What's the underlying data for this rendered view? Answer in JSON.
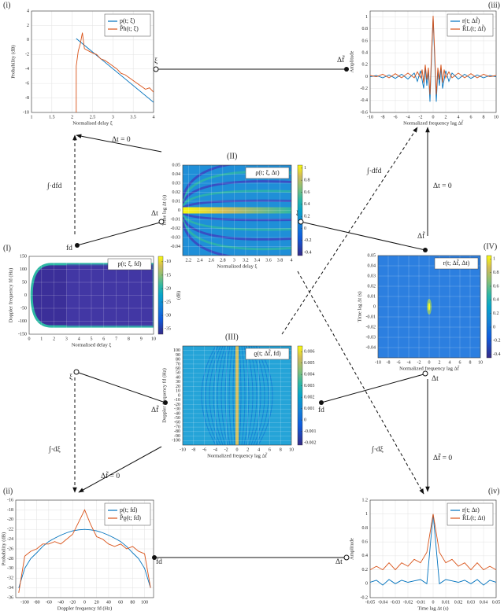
{
  "chart_data": [
    {
      "type": "line",
      "xlabel": "Normalised delay ξ",
      "ylabel": "Probability (dB)",
      "xlim": [
        1,
        4
      ],
      "xticks": [
        1,
        1.5,
        2,
        2.5,
        3,
        3.5,
        4
      ],
      "ylim": [
        -10,
        4
      ],
      "yticks": [
        -10,
        -8,
        -6,
        -4,
        -2,
        0,
        2,
        4
      ],
      "grid": true,
      "legend": "upper right",
      "series": [
        {
          "name": "p(t; ξ)",
          "color": "#0072bd",
          "x": [
            2.1,
            4
          ],
          "values": [
            0.2,
            -8.6
          ]
        },
        {
          "name": "P̂h(t; ξ)",
          "color": "#d95319",
          "x": [
            2.1,
            2.1,
            2.15,
            2.2,
            2.25,
            2.3,
            2.4,
            2.5,
            2.6,
            2.7,
            2.8,
            2.9,
            3.0,
            3.1,
            3.2,
            3.3,
            3.4,
            3.5,
            3.6,
            3.7,
            3.8,
            3.9,
            4.0
          ],
          "values": [
            -10,
            -3.6,
            -1.5,
            -0.5,
            1,
            -1.2,
            -1.5,
            -1.8,
            -2,
            -2.6,
            -2.8,
            -3.2,
            -3.6,
            -4,
            -4.6,
            -4.8,
            -5.2,
            -5.6,
            -6,
            -6.4,
            -6.8,
            -6.6,
            -7.2
          ]
        }
      ]
    },
    {
      "type": "line",
      "xlabel": "Normalized frequency lag Δf̃",
      "ylabel": "Amplitude",
      "xlim": [
        -10,
        10
      ],
      "xticks": [
        -10,
        -8,
        -6,
        -4,
        -2,
        0,
        2,
        4,
        6,
        8,
        10
      ],
      "ylim": [
        -0.6,
        1.1
      ],
      "yticks": [
        -0.6,
        -0.4,
        -0.2,
        0,
        0.2,
        0.4,
        0.6,
        0.8,
        1
      ],
      "grid": true,
      "legend": "upper right",
      "x": [
        -10,
        -9,
        -8,
        -7,
        -6,
        -5,
        -4,
        -3,
        -2.5,
        -2,
        -1.75,
        -1.5,
        -1.25,
        -1,
        -0.75,
        -0.5,
        -0.25,
        0,
        0.25,
        0.5,
        0.75,
        1,
        1.25,
        1.5,
        1.75,
        2,
        2.5,
        3,
        4,
        5,
        6,
        7,
        8,
        9,
        10
      ],
      "series": [
        {
          "name": "r(t; Δf̃)",
          "color": "#0072bd",
          "values": [
            0,
            0.02,
            -0.02,
            0.03,
            -0.03,
            0.04,
            -0.04,
            0.06,
            -0.08,
            0.1,
            -0.05,
            -0.2,
            0.15,
            -0.15,
            0.1,
            -0.42,
            0.3,
            1,
            0.3,
            -0.42,
            0.1,
            -0.15,
            0.15,
            -0.2,
            -0.05,
            0.1,
            -0.08,
            0.06,
            -0.04,
            0.04,
            -0.03,
            0.03,
            -0.02,
            0.02,
            0
          ]
        },
        {
          "name": "R̂L(t; Δf̃)",
          "color": "#d95319",
          "values": [
            0.02,
            0,
            0.04,
            -0.02,
            0.05,
            -0.02,
            0.06,
            -0.02,
            0.08,
            -0.02,
            0.12,
            -0.1,
            0.2,
            -0.05,
            0.15,
            -0.3,
            0.4,
            1.02,
            0.4,
            -0.3,
            0.15,
            -0.05,
            0.2,
            -0.1,
            0.12,
            -0.02,
            0.08,
            -0.02,
            0.06,
            -0.02,
            0.05,
            -0.02,
            0.04,
            0,
            0.02
          ]
        }
      ]
    },
    {
      "type": "heatmap",
      "title": "ρ(t; ξ, Δt)",
      "xlabel": "Normalized delay ξ",
      "ylabel": "Time lag Δt (s)",
      "xlim": [
        2.1,
        4
      ],
      "xticks": [
        2.2,
        2.4,
        2.6,
        2.8,
        3,
        3.2,
        3.4,
        3.6,
        3.8,
        4
      ],
      "ylim": [
        -0.05,
        0.05
      ],
      "yticks": [
        -0.04,
        -0.03,
        -0.02,
        -0.01,
        0,
        0.01,
        0.02,
        0.03,
        0.04,
        0.05
      ],
      "clim": [
        -0.45,
        1.05
      ],
      "cticks": [
        -0.4,
        -0.2,
        0,
        0.2,
        0.4,
        0.6,
        0.8,
        1
      ],
      "grid": true
    },
    {
      "type": "heatmap",
      "title": "p(t; ξ, fd)",
      "xlabel": "Normalised delay ξ",
      "ylabel": "Doppler frequency fd (Hz)",
      "xlim": [
        0,
        10
      ],
      "xticks": [
        0,
        1,
        2,
        3,
        4,
        5,
        6,
        7,
        8,
        9,
        10
      ],
      "ylim": [
        -150,
        150
      ],
      "yticks": [
        -150,
        -100,
        -50,
        0,
        50,
        100,
        150
      ],
      "clim": [
        -37,
        -8
      ],
      "cticks": [
        -35,
        -30,
        -25,
        -20,
        -15,
        -10
      ],
      "colorbar_label": "(dB)",
      "grid": true
    },
    {
      "type": "heatmap",
      "title": "r(t; Δf̃, Δt)",
      "xlabel": "Normalized frequency lag Δf̃",
      "ylabel": "Time lag Δt (s)",
      "xlim": [
        -10,
        10
      ],
      "xticks": [
        -10,
        -8,
        -6,
        -4,
        -2,
        0,
        2,
        4,
        6,
        8,
        10
      ],
      "ylim": [
        -0.05,
        0.05
      ],
      "yticks": [
        -0.04,
        -0.03,
        -0.02,
        -0.01,
        0,
        0.01,
        0.02,
        0.03,
        0.04,
        0.05
      ],
      "clim": [
        -0.45,
        1.05
      ],
      "cticks": [
        -0.4,
        -0.2,
        0,
        0.2,
        0.4,
        0.6,
        0.8,
        1
      ],
      "grid": true
    },
    {
      "type": "heatmap",
      "title": "ϱ(t; Δf̃, fd)",
      "xlabel": "Normalized frequency lag Δf̃",
      "ylabel": "Doppler frequency fd (Hz)",
      "xlim": [
        -10,
        10
      ],
      "xticks": [
        -10,
        -8,
        -6,
        -4,
        -2,
        0,
        2,
        4,
        6,
        8,
        10
      ],
      "ylim": [
        -110,
        110
      ],
      "yticks": [
        -100,
        -90,
        -80,
        -70,
        -60,
        -50,
        -40,
        -30,
        -20,
        -10,
        0,
        10,
        20,
        30,
        40,
        50,
        60,
        70,
        80,
        90,
        100
      ],
      "clim": [
        -0.0022,
        0.0065
      ],
      "cticks": [
        -0.002,
        -0.001,
        0,
        0.001,
        0.002,
        0.003,
        0.004,
        0.005,
        0.006
      ],
      "grid": true
    },
    {
      "type": "line",
      "xlabel": "Doppler frequency fd (Hz)",
      "ylabel": "Probability (dB)",
      "xlim": [
        -115,
        115
      ],
      "xticks": [
        -100,
        -80,
        -60,
        -40,
        -20,
        0,
        20,
        40,
        60,
        80,
        100
      ],
      "ylim": [
        -36,
        -16
      ],
      "yticks": [
        -36,
        -34,
        -32,
        -30,
        -28,
        -26,
        -24,
        -22,
        -20,
        -18,
        -16
      ],
      "grid": true,
      "legend": "upper right",
      "x": [
        -110,
        -100,
        -90,
        -80,
        -70,
        -60,
        -50,
        -40,
        -30,
        -20,
        -10,
        0,
        10,
        20,
        30,
        40,
        50,
        60,
        70,
        80,
        90,
        100,
        110
      ],
      "series": [
        {
          "name": "p(t; fd)",
          "color": "#0072bd",
          "values": [
            -34,
            -30,
            -28,
            -26.8,
            -25.5,
            -24.5,
            -23.8,
            -23.2,
            -22.7,
            -22.3,
            -22.1,
            -22,
            -22.1,
            -22.3,
            -22.7,
            -23.2,
            -23.8,
            -24.5,
            -25.5,
            -26.8,
            -28,
            -30,
            -34
          ]
        },
        {
          "name": "P̂ϱ(t; fd)",
          "color": "#d95319",
          "values": [
            -35,
            -27.5,
            -26.5,
            -26,
            -25,
            -25,
            -24.5,
            -25,
            -24,
            -23,
            -20.5,
            -18,
            -21,
            -23.5,
            -24,
            -25,
            -25.5,
            -25,
            -26,
            -25.5,
            -26.5,
            -27,
            -34
          ]
        }
      ]
    },
    {
      "type": "line",
      "xlabel": "Time lag Δt (s)",
      "ylabel": "Amplitude",
      "xlim": [
        -0.05,
        0.05
      ],
      "xticks": [
        -0.05,
        -0.04,
        -0.03,
        -0.02,
        -0.01,
        0,
        0.01,
        0.02,
        0.03,
        0.04,
        0.05
      ],
      "ylim": [
        -0.2,
        1.2
      ],
      "yticks": [
        -0.2,
        0,
        0.2,
        0.4,
        0.6,
        0.8,
        1,
        1.2
      ],
      "grid": true,
      "legend": "upper right",
      "x": [
        -0.05,
        -0.045,
        -0.04,
        -0.035,
        -0.03,
        -0.025,
        -0.02,
        -0.015,
        -0.01,
        -0.005,
        0,
        0.005,
        0.01,
        0.015,
        0.02,
        0.025,
        0.03,
        0.035,
        0.04,
        0.045,
        0.05
      ],
      "series": [
        {
          "name": "r(t; Δt)",
          "color": "#0072bd",
          "values": [
            0.02,
            0.05,
            -0.02,
            0.06,
            0,
            0.05,
            0.02,
            0.04,
            0.06,
            0,
            1,
            0,
            0.06,
            0.04,
            0.02,
            0.05,
            0,
            0.06,
            -0.02,
            0.05,
            0.02
          ]
        },
        {
          "name": "R̂L(t; Δt)",
          "color": "#d95319",
          "values": [
            0.2,
            0.25,
            0.2,
            0.3,
            0.2,
            0.3,
            0.25,
            0.35,
            0.3,
            0.45,
            1,
            0.45,
            0.3,
            0.35,
            0.25,
            0.3,
            0.2,
            0.3,
            0.2,
            0.25,
            0.2
          ]
        }
      ]
    }
  ],
  "diagram": {
    "panel_labels": [
      "(i)",
      "(iii)",
      "(II)",
      "(I)",
      "(IV)",
      "(III)",
      "(ii)",
      "(iv)"
    ],
    "edge_labels": [
      "Δt = 0",
      "∫·dfd",
      "fd",
      "Δt",
      "ξ",
      "Δf̃",
      "ξ",
      "Δf̃",
      "∫·dfd",
      "Δt = 0",
      "ξ",
      "Δf̃",
      "∫·dξ",
      "Δf̃ = 0",
      "fd",
      "Δt",
      "Δf̃ = 0",
      "∫·dξ",
      "fd",
      "Δt"
    ]
  }
}
